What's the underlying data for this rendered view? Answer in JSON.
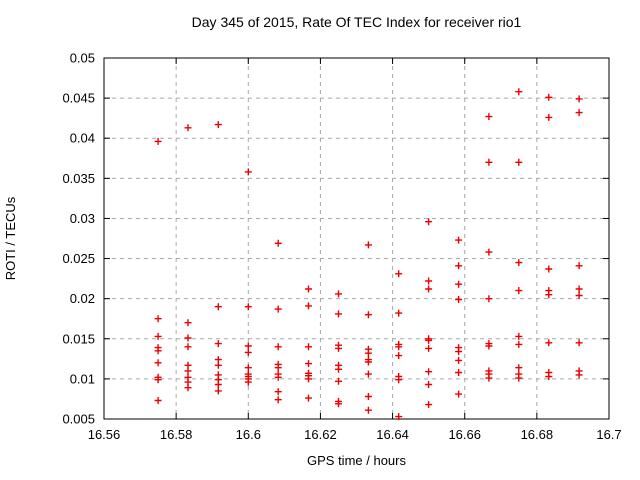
{
  "chart_data": {
    "type": "scatter",
    "title": "Day 345 of 2015, Rate Of TEC Index for receiver rio1",
    "xlabel": "GPS time / hours",
    "ylabel": "ROTI / TECUs",
    "xlim": [
      16.56,
      16.7
    ],
    "ylim": [
      0.005,
      0.05
    ],
    "grid": true,
    "legend": "none",
    "xticks": [
      {
        "v": 16.56,
        "label": "16.56"
      },
      {
        "v": 16.58,
        "label": "16.58"
      },
      {
        "v": 16.6,
        "label": "16.6"
      },
      {
        "v": 16.62,
        "label": "16.62"
      },
      {
        "v": 16.64,
        "label": "16.64"
      },
      {
        "v": 16.66,
        "label": "16.66"
      },
      {
        "v": 16.68,
        "label": "16.68"
      },
      {
        "v": 16.7,
        "label": "16.7"
      }
    ],
    "yticks": [
      {
        "v": 0.005,
        "label": "0.005"
      },
      {
        "v": 0.01,
        "label": "0.01"
      },
      {
        "v": 0.015,
        "label": "0.015"
      },
      {
        "v": 0.02,
        "label": "0.02"
      },
      {
        "v": 0.025,
        "label": "0.025"
      },
      {
        "v": 0.03,
        "label": "0.03"
      },
      {
        "v": 0.035,
        "label": "0.035"
      },
      {
        "v": 0.04,
        "label": "0.04"
      },
      {
        "v": 0.045,
        "label": "0.045"
      },
      {
        "v": 0.05,
        "label": "0.05"
      }
    ],
    "style": {
      "marker": "plus",
      "marker_color": "#ee0000",
      "marker_size": 7,
      "grid_color": "#a8a8a8",
      "border_color": "#000000",
      "background": "#ffffff"
    },
    "series": [
      {
        "name": "ROTI",
        "points": [
          [
            16.575,
            0.0396
          ],
          [
            16.575,
            0.0175
          ],
          [
            16.575,
            0.0153
          ],
          [
            16.575,
            0.0139
          ],
          [
            16.575,
            0.0135
          ],
          [
            16.575,
            0.012
          ],
          [
            16.575,
            0.0102
          ],
          [
            16.575,
            0.0099
          ],
          [
            16.575,
            0.0073
          ],
          [
            16.5833,
            0.0413
          ],
          [
            16.5833,
            0.017
          ],
          [
            16.5833,
            0.0151
          ],
          [
            16.5833,
            0.014
          ],
          [
            16.5833,
            0.0117
          ],
          [
            16.5833,
            0.011
          ],
          [
            16.5833,
            0.0102
          ],
          [
            16.5833,
            0.0096
          ],
          [
            16.5833,
            0.0089
          ],
          [
            16.5917,
            0.0417
          ],
          [
            16.5917,
            0.019
          ],
          [
            16.5917,
            0.0144
          ],
          [
            16.5917,
            0.0124
          ],
          [
            16.5917,
            0.0117
          ],
          [
            16.5917,
            0.0105
          ],
          [
            16.5917,
            0.0099
          ],
          [
            16.5917,
            0.0093
          ],
          [
            16.5917,
            0.0085
          ],
          [
            16.6,
            0.0358
          ],
          [
            16.6,
            0.019
          ],
          [
            16.6,
            0.0141
          ],
          [
            16.6,
            0.0133
          ],
          [
            16.6,
            0.0114
          ],
          [
            16.6,
            0.0106
          ],
          [
            16.6,
            0.0103
          ],
          [
            16.6,
            0.01
          ],
          [
            16.6,
            0.0096
          ],
          [
            16.6083,
            0.0269
          ],
          [
            16.6083,
            0.0187
          ],
          [
            16.6083,
            0.014
          ],
          [
            16.6083,
            0.0118
          ],
          [
            16.6083,
            0.0114
          ],
          [
            16.6083,
            0.0106
          ],
          [
            16.6083,
            0.0102
          ],
          [
            16.6083,
            0.0084
          ],
          [
            16.6083,
            0.0074
          ],
          [
            16.6167,
            0.0212
          ],
          [
            16.6167,
            0.0191
          ],
          [
            16.6167,
            0.014
          ],
          [
            16.6167,
            0.0119
          ],
          [
            16.6167,
            0.0107
          ],
          [
            16.6167,
            0.0104
          ],
          [
            16.6167,
            0.01
          ],
          [
            16.6167,
            0.0076
          ],
          [
            16.625,
            0.0206
          ],
          [
            16.625,
            0.0181
          ],
          [
            16.625,
            0.0142
          ],
          [
            16.625,
            0.0138
          ],
          [
            16.625,
            0.0117
          ],
          [
            16.625,
            0.0112
          ],
          [
            16.625,
            0.0097
          ],
          [
            16.625,
            0.0072
          ],
          [
            16.625,
            0.0069
          ],
          [
            16.6333,
            0.0267
          ],
          [
            16.6333,
            0.018
          ],
          [
            16.6333,
            0.0137
          ],
          [
            16.6333,
            0.0132
          ],
          [
            16.6333,
            0.0124
          ],
          [
            16.6333,
            0.0121
          ],
          [
            16.6333,
            0.0106
          ],
          [
            16.6333,
            0.0078
          ],
          [
            16.6333,
            0.0061
          ],
          [
            16.6417,
            0.0231
          ],
          [
            16.6417,
            0.0182
          ],
          [
            16.6417,
            0.0143
          ],
          [
            16.6417,
            0.014
          ],
          [
            16.6417,
            0.0129
          ],
          [
            16.6417,
            0.0103
          ],
          [
            16.6417,
            0.0099
          ],
          [
            16.6417,
            0.0053
          ],
          [
            16.65,
            0.0296
          ],
          [
            16.65,
            0.0222
          ],
          [
            16.65,
            0.0212
          ],
          [
            16.65,
            0.015
          ],
          [
            16.65,
            0.0148
          ],
          [
            16.65,
            0.0138
          ],
          [
            16.65,
            0.0109
          ],
          [
            16.65,
            0.0093
          ],
          [
            16.65,
            0.0068
          ],
          [
            16.6583,
            0.0273
          ],
          [
            16.6583,
            0.0241
          ],
          [
            16.6583,
            0.0218
          ],
          [
            16.6583,
            0.0199
          ],
          [
            16.6583,
            0.0139
          ],
          [
            16.6583,
            0.0134
          ],
          [
            16.6583,
            0.0123
          ],
          [
            16.6583,
            0.0108
          ],
          [
            16.6583,
            0.0081
          ],
          [
            16.6667,
            0.0427
          ],
          [
            16.6667,
            0.037
          ],
          [
            16.6667,
            0.0258
          ],
          [
            16.6667,
            0.02
          ],
          [
            16.6667,
            0.0144
          ],
          [
            16.6667,
            0.0141
          ],
          [
            16.6667,
            0.011
          ],
          [
            16.6667,
            0.0106
          ],
          [
            16.6667,
            0.0101
          ],
          [
            16.675,
            0.0458
          ],
          [
            16.675,
            0.037
          ],
          [
            16.675,
            0.0245
          ],
          [
            16.675,
            0.021
          ],
          [
            16.675,
            0.0153
          ],
          [
            16.675,
            0.0143
          ],
          [
            16.675,
            0.0114
          ],
          [
            16.675,
            0.0106
          ],
          [
            16.675,
            0.0101
          ],
          [
            16.6833,
            0.0451
          ],
          [
            16.6833,
            0.0426
          ],
          [
            16.6833,
            0.0237
          ],
          [
            16.6833,
            0.021
          ],
          [
            16.6833,
            0.0205
          ],
          [
            16.6833,
            0.0145
          ],
          [
            16.6833,
            0.0108
          ],
          [
            16.6833,
            0.0103
          ],
          [
            16.6917,
            0.0449
          ],
          [
            16.6917,
            0.0432
          ],
          [
            16.6917,
            0.0241
          ],
          [
            16.6917,
            0.0212
          ],
          [
            16.6917,
            0.0204
          ],
          [
            16.6917,
            0.0145
          ],
          [
            16.6917,
            0.011
          ],
          [
            16.6917,
            0.0105
          ]
        ]
      }
    ]
  }
}
